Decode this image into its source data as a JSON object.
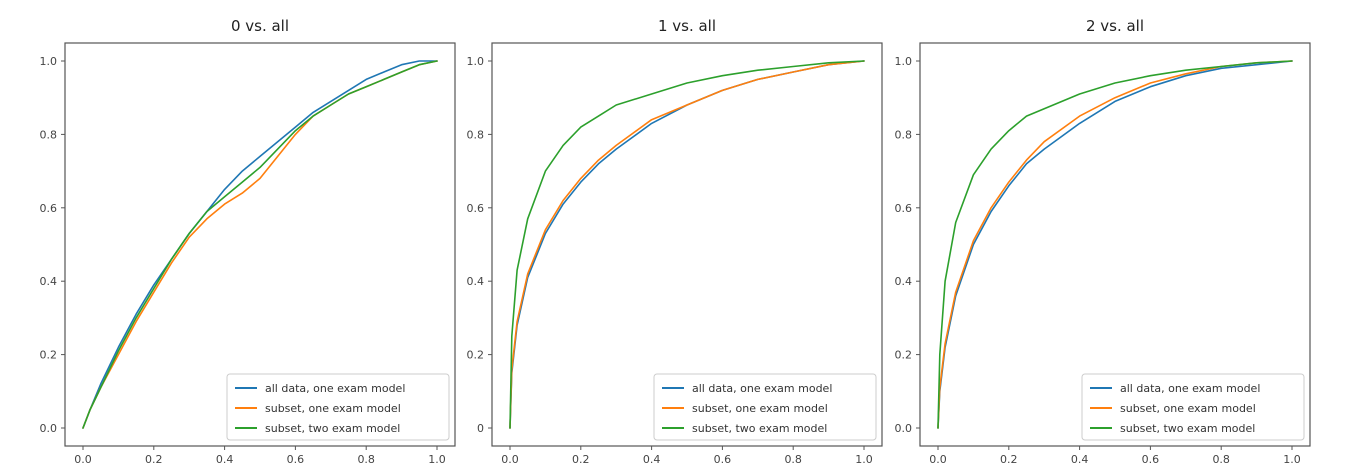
{
  "chart_data": [
    {
      "type": "line",
      "title": "0 vs. all",
      "xlim": [
        0,
        1
      ],
      "ylim": [
        0,
        1
      ],
      "xticks": [
        "0.0",
        "0.2",
        "0.4",
        "0.6",
        "0.8",
        "1.0"
      ],
      "yticks": [
        "0.0",
        "0.2",
        "0.4",
        "0.6",
        "0.8",
        "1.0"
      ],
      "legend_position": "lower-right",
      "series": [
        {
          "name": "all data, one exam model",
          "color": "#1f77b4",
          "x": [
            0,
            0.02,
            0.05,
            0.1,
            0.15,
            0.2,
            0.25,
            0.3,
            0.35,
            0.4,
            0.45,
            0.5,
            0.55,
            0.6,
            0.65,
            0.7,
            0.75,
            0.8,
            0.85,
            0.9,
            0.95,
            1.0
          ],
          "y": [
            0,
            0.05,
            0.12,
            0.22,
            0.31,
            0.39,
            0.46,
            0.53,
            0.59,
            0.65,
            0.7,
            0.74,
            0.78,
            0.82,
            0.86,
            0.89,
            0.92,
            0.95,
            0.97,
            0.99,
            1.0,
            1.0
          ]
        },
        {
          "name": "subset, one exam model",
          "color": "#ff7f0e",
          "x": [
            0,
            0.02,
            0.05,
            0.1,
            0.15,
            0.2,
            0.25,
            0.3,
            0.35,
            0.4,
            0.45,
            0.5,
            0.55,
            0.6,
            0.65,
            0.7,
            0.75,
            0.8,
            0.85,
            0.9,
            0.95,
            1.0
          ],
          "y": [
            0,
            0.05,
            0.11,
            0.2,
            0.29,
            0.37,
            0.45,
            0.52,
            0.57,
            0.61,
            0.64,
            0.68,
            0.74,
            0.8,
            0.85,
            0.88,
            0.91,
            0.93,
            0.95,
            0.97,
            0.99,
            1.0
          ]
        },
        {
          "name": "subset, two exam model",
          "color": "#2ca02c",
          "x": [
            0,
            0.02,
            0.05,
            0.1,
            0.15,
            0.2,
            0.25,
            0.3,
            0.35,
            0.4,
            0.45,
            0.5,
            0.55,
            0.6,
            0.65,
            0.7,
            0.75,
            0.8,
            0.85,
            0.9,
            0.95,
            1.0
          ],
          "y": [
            0,
            0.05,
            0.11,
            0.21,
            0.3,
            0.38,
            0.46,
            0.53,
            0.59,
            0.63,
            0.67,
            0.71,
            0.76,
            0.81,
            0.85,
            0.88,
            0.91,
            0.93,
            0.95,
            0.97,
            0.99,
            1.0
          ]
        }
      ]
    },
    {
      "type": "line",
      "title": "1 vs. all",
      "xlim": [
        0,
        1
      ],
      "ylim": [
        0,
        1
      ],
      "xticks": [
        "0.0",
        "0.2",
        "0.4",
        "0.6",
        "0.8",
        "1.0"
      ],
      "yticks": [
        "0",
        "0.2",
        "0.4",
        "0.6",
        "0.8",
        "1.0"
      ],
      "legend_position": "lower-right",
      "series": [
        {
          "name": "all data, one exam model",
          "color": "#1f77b4",
          "x": [
            0,
            0.005,
            0.02,
            0.05,
            0.1,
            0.15,
            0.2,
            0.25,
            0.3,
            0.4,
            0.5,
            0.6,
            0.7,
            0.8,
            0.9,
            1.0
          ],
          "y": [
            0,
            0.15,
            0.28,
            0.41,
            0.53,
            0.61,
            0.67,
            0.72,
            0.76,
            0.83,
            0.88,
            0.92,
            0.95,
            0.97,
            0.99,
            1.0
          ]
        },
        {
          "name": "subset, one exam model",
          "color": "#ff7f0e",
          "x": [
            0,
            0.005,
            0.02,
            0.05,
            0.1,
            0.15,
            0.2,
            0.25,
            0.3,
            0.4,
            0.5,
            0.6,
            0.7,
            0.8,
            0.9,
            1.0
          ],
          "y": [
            0,
            0.16,
            0.29,
            0.42,
            0.54,
            0.62,
            0.68,
            0.73,
            0.77,
            0.84,
            0.88,
            0.92,
            0.95,
            0.97,
            0.99,
            1.0
          ]
        },
        {
          "name": "subset, two exam model",
          "color": "#2ca02c",
          "x": [
            0,
            0.005,
            0.02,
            0.05,
            0.1,
            0.15,
            0.2,
            0.25,
            0.3,
            0.4,
            0.5,
            0.6,
            0.7,
            0.8,
            0.9,
            1.0
          ],
          "y": [
            0,
            0.25,
            0.43,
            0.57,
            0.7,
            0.77,
            0.82,
            0.85,
            0.88,
            0.91,
            0.94,
            0.96,
            0.975,
            0.985,
            0.995,
            1.0
          ]
        }
      ]
    },
    {
      "type": "line",
      "title": "2 vs. all",
      "xlim": [
        0,
        1
      ],
      "ylim": [
        0,
        1
      ],
      "xticks": [
        "0.0",
        "0.2",
        "0.4",
        "0.6",
        "0.8",
        "1.0"
      ],
      "yticks": [
        "0.0",
        "0.2",
        "0.4",
        "0.6",
        "0.8",
        "1.0"
      ],
      "legend_position": "lower-right",
      "series": [
        {
          "name": "all data, one exam model",
          "color": "#1f77b4",
          "x": [
            0,
            0.005,
            0.02,
            0.05,
            0.1,
            0.15,
            0.2,
            0.25,
            0.3,
            0.4,
            0.5,
            0.6,
            0.7,
            0.8,
            0.9,
            1.0
          ],
          "y": [
            0,
            0.1,
            0.22,
            0.36,
            0.5,
            0.59,
            0.66,
            0.72,
            0.76,
            0.83,
            0.89,
            0.93,
            0.96,
            0.98,
            0.99,
            1.0
          ]
        },
        {
          "name": "subset, one exam model",
          "color": "#ff7f0e",
          "x": [
            0,
            0.005,
            0.02,
            0.05,
            0.1,
            0.15,
            0.2,
            0.25,
            0.3,
            0.4,
            0.5,
            0.6,
            0.7,
            0.8,
            0.9,
            1.0
          ],
          "y": [
            0,
            0.11,
            0.23,
            0.37,
            0.51,
            0.6,
            0.67,
            0.73,
            0.78,
            0.85,
            0.9,
            0.94,
            0.965,
            0.985,
            0.995,
            1.0
          ]
        },
        {
          "name": "subset, two exam model",
          "color": "#2ca02c",
          "x": [
            0,
            0.005,
            0.02,
            0.05,
            0.1,
            0.15,
            0.2,
            0.25,
            0.3,
            0.4,
            0.5,
            0.6,
            0.7,
            0.8,
            0.9,
            1.0
          ],
          "y": [
            0,
            0.2,
            0.4,
            0.56,
            0.69,
            0.76,
            0.81,
            0.85,
            0.87,
            0.91,
            0.94,
            0.96,
            0.975,
            0.985,
            0.995,
            1.0
          ]
        }
      ]
    }
  ]
}
